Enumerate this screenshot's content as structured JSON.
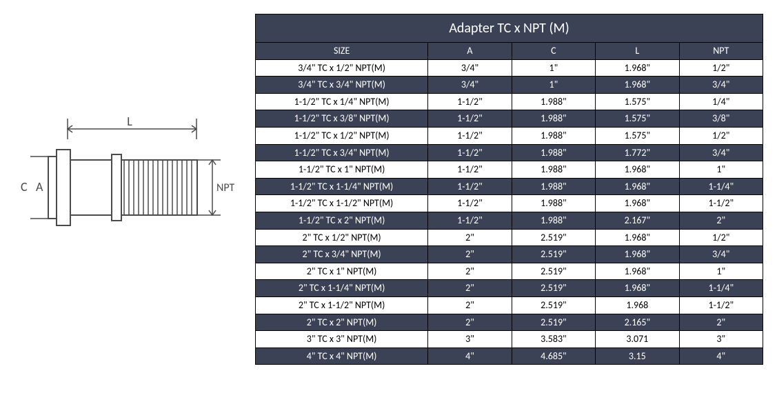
{
  "diagram": {
    "label_C": "C",
    "label_A": "A",
    "label_L": "L",
    "label_NPT": "NPT",
    "stroke": "#4a4a4a",
    "fill": "#ffffff"
  },
  "table": {
    "title": "Adapter TC x NPT (M)",
    "title_bg": "#3b4256",
    "title_color": "#ffffff",
    "dark_bg": "#3b4256",
    "dark_color": "#ffffff",
    "light_bg": "#ffffff",
    "light_color": "#000000",
    "columns": [
      "SIZE",
      "A",
      "C",
      "L",
      "NPT"
    ],
    "col_widths": [
      "34%",
      "16.5%",
      "16.5%",
      "16.5%",
      "16.5%"
    ],
    "rows": [
      {
        "style": "light",
        "cells": [
          "3/4\" TC x 1/2\" NPT(M)",
          "3/4\"",
          "1\"",
          "1.968\"",
          "1/2\""
        ]
      },
      {
        "style": "dark",
        "cells": [
          "3/4\" TC x 3/4\" NPT(M)",
          "3/4\"",
          "1\"",
          "1.968\"",
          "3/4\""
        ]
      },
      {
        "style": "light",
        "cells": [
          "1-1/2\" TC x 1/4\" NPT(M)",
          "1-1/2\"",
          "1.988\"",
          "1.575\"",
          "1/4\""
        ]
      },
      {
        "style": "dark",
        "cells": [
          "1-1/2\" TC x 3/8\" NPT(M)",
          "1-1/2\"",
          "1.988\"",
          "1.575\"",
          "3/8\""
        ]
      },
      {
        "style": "light",
        "cells": [
          "1-1/2\" TC x 1/2\" NPT(M)",
          "1-1/2\"",
          "1.988\"",
          "1.575\"",
          "1/2\""
        ]
      },
      {
        "style": "dark",
        "cells": [
          "1-1/2\" TC x 3/4\" NPT(M)",
          "1-1/2\"",
          "1.988\"",
          "1.772\"",
          "3/4\""
        ]
      },
      {
        "style": "light",
        "cells": [
          "1-1/2\" TC x 1\" NPT(M)",
          "1-1/2\"",
          "1.988\"",
          "1.968\"",
          "1\""
        ]
      },
      {
        "style": "dark",
        "cells": [
          "1-1/2\" TC x 1-1/4\" NPT(M)",
          "1-1/2\"",
          "1.988\"",
          "1.968\"",
          "1-1/4\""
        ]
      },
      {
        "style": "light",
        "cells": [
          "1-1/2\" TC x 1-1/2\" NPT(M)",
          "1-1/2\"",
          "1.988\"",
          "1.968\"",
          "1-1/2\""
        ]
      },
      {
        "style": "dark",
        "cells": [
          "1-1/2\" TC x 2\" NPT(M)",
          "1-1/2\"",
          "1.988\"",
          "2.167\"",
          "2\""
        ]
      },
      {
        "style": "light",
        "cells": [
          "2\" TC x 1/2\" NPT(M)",
          "2\"",
          "2.519\"",
          "1.968\"",
          "1/2\""
        ]
      },
      {
        "style": "dark",
        "cells": [
          "2\" TC x 3/4\" NPT(M)",
          "2\"",
          "2.519\"",
          "1.968\"",
          "3/4\""
        ]
      },
      {
        "style": "light",
        "cells": [
          "2\" TC x 1\" NPT(M)",
          "2\"",
          "2.519\"",
          "1.968\"",
          "1\""
        ]
      },
      {
        "style": "dark",
        "cells": [
          "2\" TC x 1-1/4\" NPT(M)",
          "2\"",
          "2.519\"",
          "1.968\"",
          "1-1/4\""
        ]
      },
      {
        "style": "light",
        "cells": [
          "2\" TC x 1-1/2\" NPT(M)",
          "2\"",
          "2.519\"",
          "1.968",
          "1-1/2\""
        ]
      },
      {
        "style": "dark",
        "cells": [
          "2\" TC x 2\" NPT(M)",
          "2\"",
          "2.519\"",
          "2.165\"",
          "2\""
        ]
      },
      {
        "style": "light",
        "cells": [
          "3\" TC x 3\" NPT(M)",
          "3\"",
          "3.583\"",
          "3.071",
          "3\""
        ]
      },
      {
        "style": "dark",
        "cells": [
          "4\" TC x 4\" NPT(M)",
          "4\"",
          "4.685\"",
          "3.15",
          "4\""
        ]
      }
    ]
  }
}
